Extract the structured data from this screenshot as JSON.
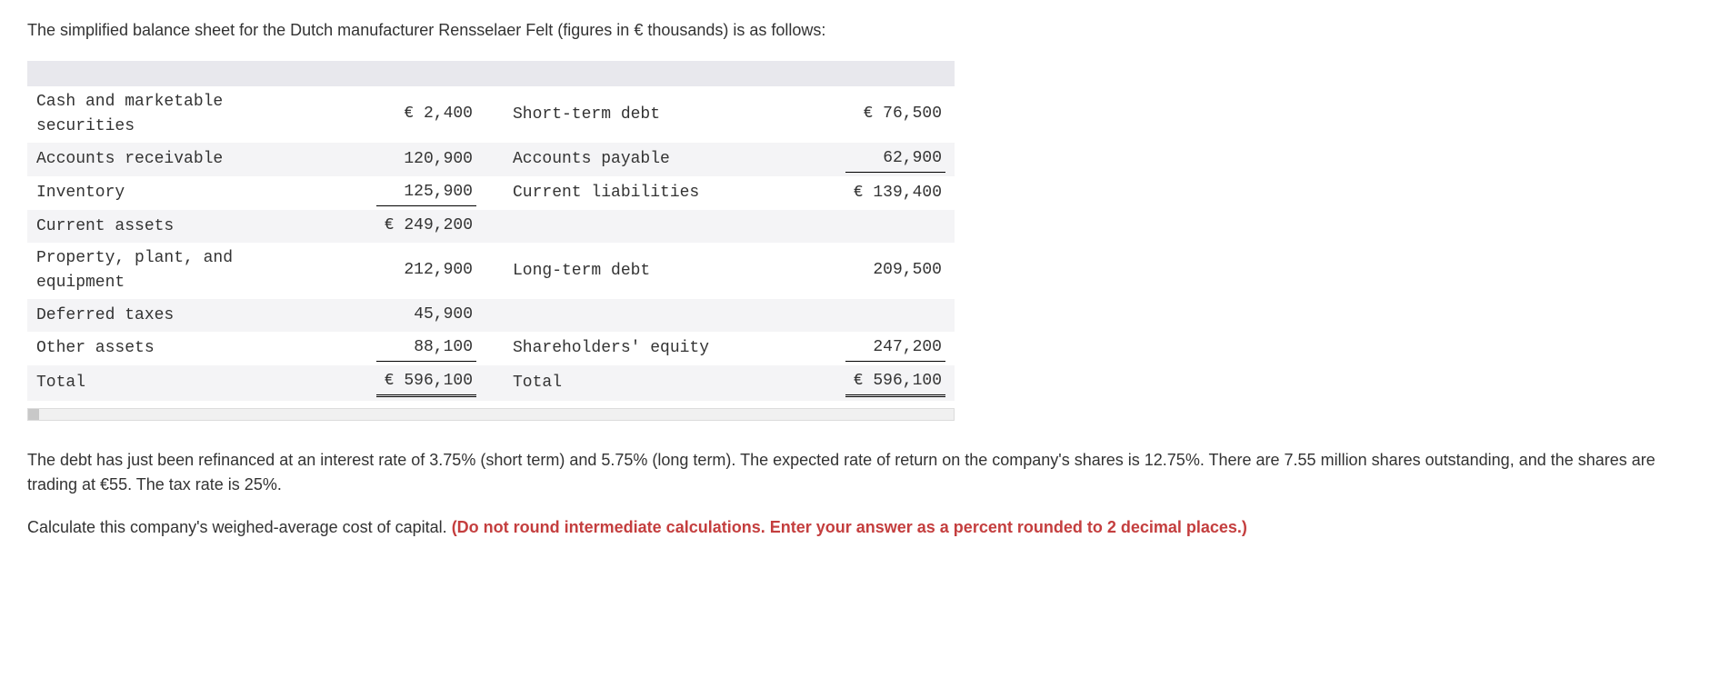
{
  "intro": "The simplified balance sheet for the Dutch manufacturer Rensselaer Felt (figures in € thousands) is as follows:",
  "table": {
    "rows": [
      {
        "left_label": "Cash and marketable securities",
        "left_value": "€   2,400",
        "left_border": "",
        "right_label": "Short-term debt",
        "right_value": "€  76,500",
        "right_border": ""
      },
      {
        "left_label": "Accounts receivable",
        "left_value": "120,900",
        "left_border": "",
        "right_label": "Accounts payable",
        "right_value": "62,900",
        "right_border": "underline-single"
      },
      {
        "left_label": "Inventory",
        "left_value": "125,900",
        "left_border": "underline-single",
        "right_label": "Current liabilities",
        "right_value": "€ 139,400",
        "right_border": ""
      },
      {
        "left_label": "Current assets",
        "left_value": "€ 249,200",
        "left_border": "",
        "right_label": "",
        "right_value": "",
        "right_border": ""
      },
      {
        "left_label": "Property, plant, and equipment",
        "left_value": "212,900",
        "left_border": "",
        "right_label": "Long-term debt",
        "right_value": "209,500",
        "right_border": ""
      },
      {
        "left_label": "Deferred taxes",
        "left_value": "45,900",
        "left_border": "",
        "right_label": "",
        "right_value": "",
        "right_border": ""
      },
      {
        "left_label": "Other assets",
        "left_value": "88,100",
        "left_border": "underline-single",
        "right_label": "Shareholders' equity",
        "right_value": "247,200",
        "right_border": "underline-single"
      },
      {
        "left_label": "Total",
        "left_value": "€ 596,100",
        "left_border": "underline-double",
        "right_label": "Total",
        "right_value": "€ 596,100",
        "right_border": "underline-double"
      }
    ]
  },
  "middle_para": "The debt has just been refinanced at an interest rate of 3.75% (short term) and 5.75% (long term). The expected rate of return on the company's shares is 12.75%. There are 7.55 million shares outstanding, and the shares are trading at €55. The tax rate is 25%.",
  "question_lead": "Calculate this company's weighed-average cost of capital. ",
  "question_emph": "(Do not round intermediate calculations. Enter your answer as a percent rounded to 2 decimal places.)",
  "colors": {
    "emphasis": "#c43e3e",
    "text": "#333333",
    "row_alt": "#f4f4f6",
    "header_bar": "#e8e8ed",
    "background": "#ffffff"
  }
}
